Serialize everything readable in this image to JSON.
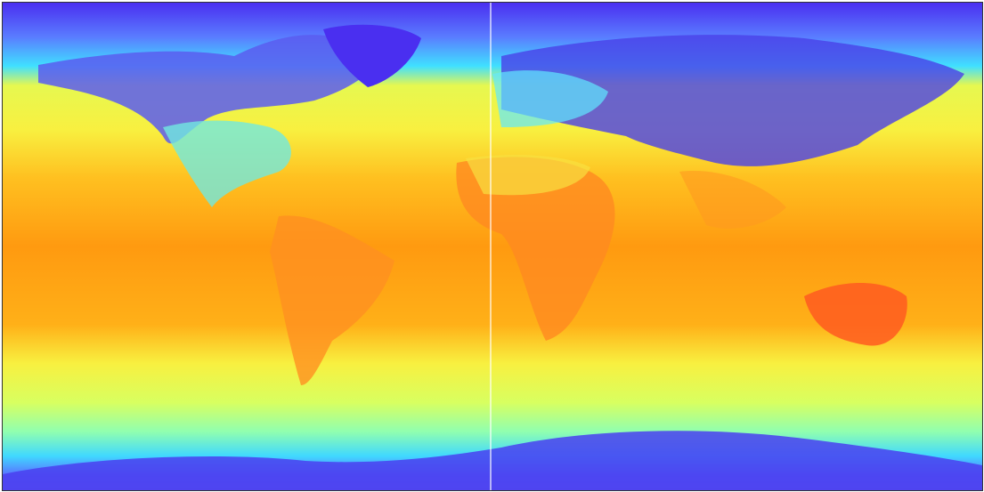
{
  "map": {
    "type": "heatmap",
    "projection": "equirectangular",
    "colormap": "jet",
    "colormap_stops": [
      "#3a20f0",
      "#4a6cff",
      "#30e8ff",
      "#a8ffa0",
      "#f6f640",
      "#ffd020",
      "#ff9a10",
      "#ff5a20"
    ],
    "meridian_line_color": "#ffffff",
    "border_color": "#333333"
  }
}
